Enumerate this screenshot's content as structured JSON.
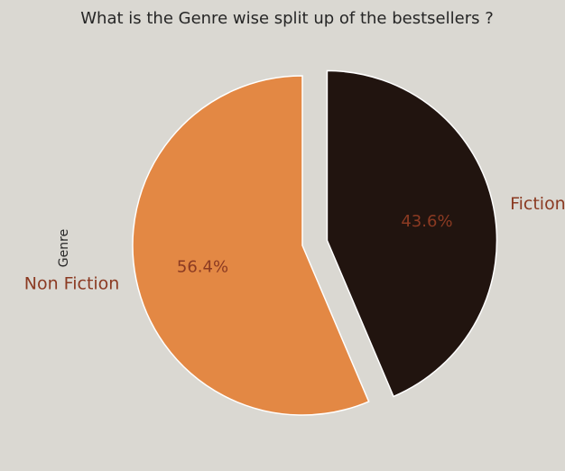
{
  "chart_data": {
    "type": "pie",
    "title": "What is the Genre wise split up of the bestsellers ?",
    "ylabel": "Genre",
    "categories": [
      "Fiction",
      "Non Fiction"
    ],
    "values": [
      43.6,
      56.4
    ],
    "value_labels": [
      "43.6%",
      "56.4%"
    ],
    "exploded": [
      true,
      false
    ],
    "colors": [
      "#21140f",
      "#e38844"
    ],
    "label_color": "#8b3a22",
    "pct_color": "#8b3a22",
    "edge_color": "#ffffff",
    "start_angle_deg": 90,
    "direction": "clockwise"
  },
  "colors": {
    "background": "#dad8d2",
    "title": "#262626"
  }
}
